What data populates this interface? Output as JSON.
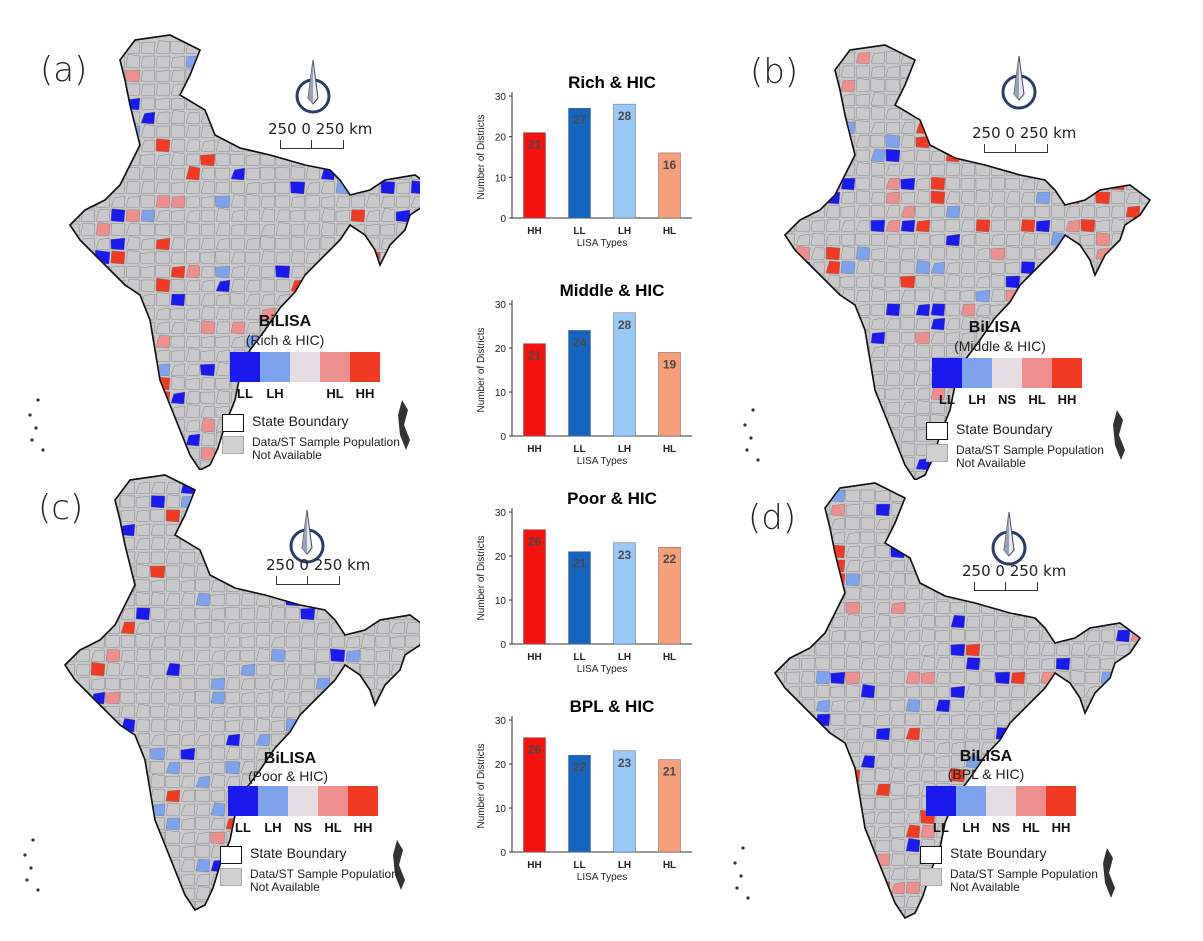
{
  "panels": [
    {
      "id": "a",
      "label": "(a)",
      "scale_text": "250   0   250 km",
      "legend": {
        "title": "BiLISA",
        "subtitle": "(Rich & HIC)",
        "classes": [
          "LL",
          "LH",
          "HL",
          "HH"
        ]
      },
      "key": {
        "boundary": "State Boundary",
        "na": "Data/ST Sample Population Not Available"
      }
    },
    {
      "id": "b",
      "label": "(b)",
      "scale_text": "250   0   250 km",
      "legend": {
        "title": "BiLISA",
        "subtitle": "(Middle & HIC)",
        "classes": [
          "LL",
          "LH",
          "NS",
          "HL",
          "HH"
        ]
      },
      "key": {
        "boundary": "State Boundary",
        "na": "Data/ST Sample Population Not Available"
      }
    },
    {
      "id": "c",
      "label": "(c)",
      "scale_text": "250   0   250 km",
      "legend": {
        "title": "BiLISA",
        "subtitle": "(Poor & HIC)",
        "classes": [
          "LL",
          "LH",
          "NS",
          "HL",
          "HH"
        ]
      },
      "key": {
        "boundary": "State Boundary",
        "na": "Data/ST Sample Population Not Available"
      }
    },
    {
      "id": "d",
      "label": "(d)",
      "scale_text": "250   0   250 km",
      "legend": {
        "title": "BiLISA",
        "subtitle": "(BPL & HIC)",
        "classes": [
          "LL",
          "LH",
          "NS",
          "HL",
          "HH"
        ]
      },
      "key": {
        "boundary": "State Boundary",
        "na": "Data/ST Sample Population Not Available"
      }
    }
  ],
  "class_colors": {
    "LL": "#1a1aee",
    "LH": "#7ea3ec",
    "NS": "#e6dde2",
    "HL": "#ee8f8f",
    "HH": "#f03a24"
  },
  "colors": {
    "map_fill": "#c9c9cc",
    "state_border": "#222222",
    "na_fill": "#cfcfcf"
  },
  "chart_data": [
    {
      "type": "bar",
      "title": "Rich & HIC",
      "xlabel": "LISA Types",
      "ylabel": "Number of Districts",
      "categories": [
        "HH",
        "LL",
        "LH",
        "HL"
      ],
      "values": [
        21,
        27,
        28,
        16
      ],
      "labels": [
        "21",
        "27",
        "28",
        "16"
      ],
      "colors": [
        "#f5120e",
        "#1565c0",
        "#99caf7",
        "#f5a07a"
      ],
      "ylim": [
        0,
        30
      ],
      "yticks": [
        0,
        10,
        20,
        30
      ]
    },
    {
      "type": "bar",
      "title": "Middle & HIC",
      "xlabel": "LISA Types",
      "ylabel": "Number of Districts",
      "categories": [
        "HH",
        "LL",
        "LH",
        "HL"
      ],
      "values": [
        21,
        24,
        28,
        19
      ],
      "labels": [
        "21",
        "24",
        "28",
        "19"
      ],
      "colors": [
        "#f5120e",
        "#1565c0",
        "#99caf7",
        "#f5a07a"
      ],
      "ylim": [
        0,
        30
      ],
      "yticks": [
        0,
        10,
        20,
        30
      ]
    },
    {
      "type": "bar",
      "title": "Poor & HIC",
      "xlabel": "LISA Types",
      "ylabel": "Number of Districts",
      "categories": [
        "HH",
        "LL",
        "LH",
        "HL"
      ],
      "values": [
        26,
        21,
        23,
        22
      ],
      "labels": [
        "26",
        "21",
        "23",
        "22"
      ],
      "colors": [
        "#f5120e",
        "#1565c0",
        "#99caf7",
        "#f5a07a"
      ],
      "ylim": [
        0,
        30
      ],
      "yticks": [
        0,
        10,
        20,
        30
      ]
    },
    {
      "type": "bar",
      "title": "BPL & HIC",
      "xlabel": "LISA Types",
      "ylabel": "Number of Districts",
      "categories": [
        "HH",
        "LL",
        "LH",
        "HL"
      ],
      "values": [
        26,
        22,
        23,
        21
      ],
      "labels": [
        "26",
        "22",
        "23",
        "21"
      ],
      "colors": [
        "#f5120e",
        "#1565c0",
        "#99caf7",
        "#f5a07a"
      ],
      "ylim": [
        0,
        30
      ],
      "yticks": [
        0,
        10,
        20,
        30
      ]
    }
  ]
}
